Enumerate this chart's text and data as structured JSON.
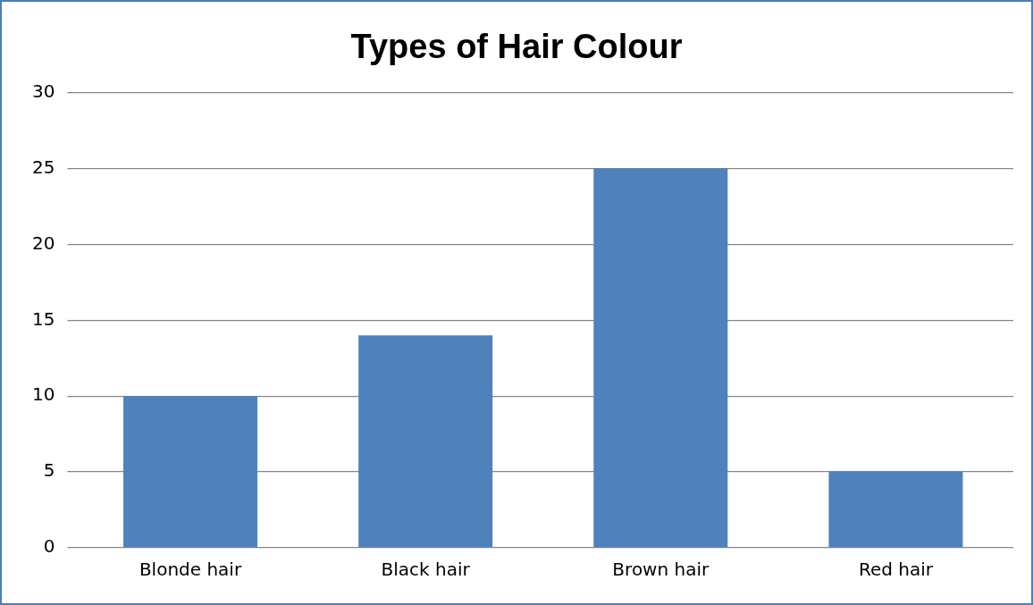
{
  "chart_data": {
    "type": "bar",
    "title": "Types of Hair Colour",
    "categories": [
      "Blonde hair",
      "Black hair",
      "Brown hair",
      "Red hair"
    ],
    "values": [
      10,
      14,
      25,
      5
    ],
    "color": "#4f81bd",
    "ylim": [
      0,
      30
    ],
    "yticks": [
      0,
      5,
      10,
      15,
      20,
      25,
      30
    ],
    "grid": "y",
    "legend": false
  }
}
